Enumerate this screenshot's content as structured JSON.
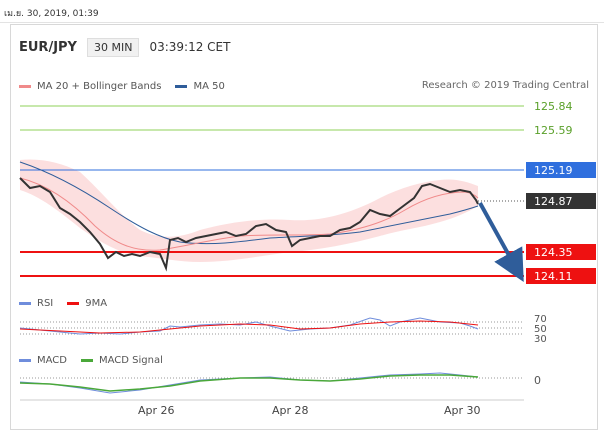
{
  "timestamp": "เม.ย. 30, 2019, 01:39",
  "header": {
    "pair": "EUR/JPY",
    "timeframe": "30 MIN",
    "time": "03:39:12 CET"
  },
  "legend_main": [
    {
      "label": "MA 20 + Bollinger Bands",
      "color": "#f08a8a"
    },
    {
      "label": "MA 50",
      "color": "#2f5d9a"
    }
  ],
  "credit": "Research © 2019 Trading Central",
  "levels": [
    {
      "label": "125.84",
      "color": "#7fbf3f",
      "kind": "target"
    },
    {
      "label": "125.59",
      "color": "#7fbf3f",
      "kind": "target"
    },
    {
      "label": "125.19",
      "color": "#2f6fde",
      "kind": "resistance"
    },
    {
      "label": "124.87",
      "color": "#333333",
      "kind": "last"
    },
    {
      "label": "124.35",
      "color": "#ee1111",
      "kind": "support"
    },
    {
      "label": "124.11",
      "color": "#ee1111",
      "kind": "support"
    }
  ],
  "legend_rsi": [
    {
      "label": "RSI",
      "color": "#6f8ddc"
    },
    {
      "label": "9MA",
      "color": "#ee1111"
    }
  ],
  "rsi_ticks": [
    "70",
    "50",
    "30"
  ],
  "legend_macd": [
    {
      "label": "MACD",
      "color": "#6f8ddc"
    },
    {
      "label": "MACD Signal",
      "color": "#4aa83a"
    }
  ],
  "macd_ticks": [
    "0"
  ],
  "x_labels": [
    "Apr 26",
    "Apr 28",
    "Apr 30"
  ]
}
